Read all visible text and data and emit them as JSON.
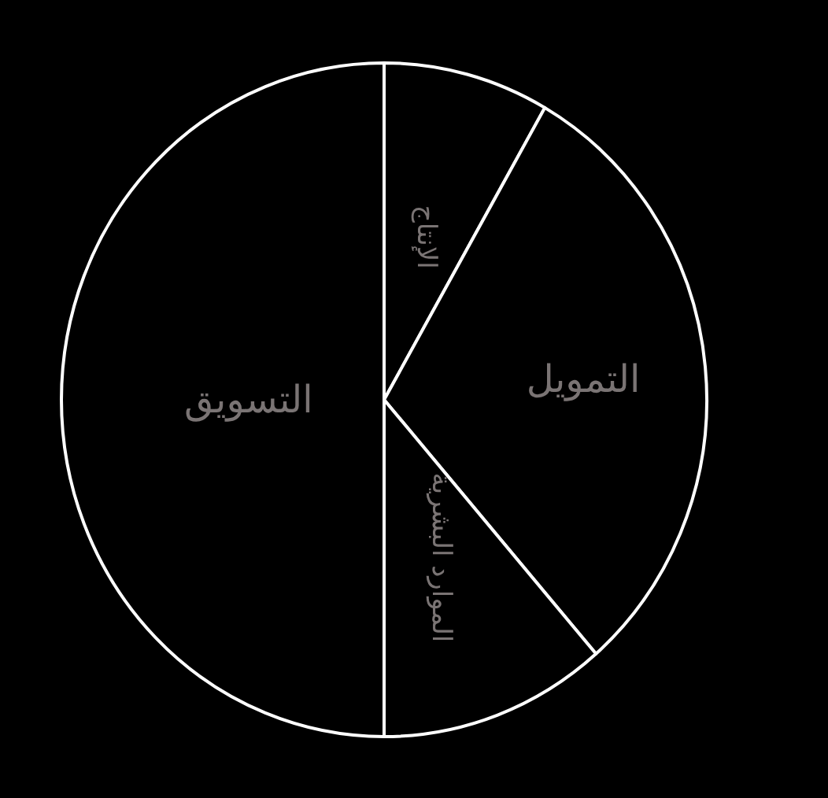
{
  "chart_data": {
    "type": "pie",
    "categories": [
      "الإنتاج",
      "التمويل",
      "الموارد البشرية",
      "التسويق"
    ],
    "values": [
      8.3,
      30.3,
      11.4,
      50
    ],
    "colors": [
      "#000000",
      "#000000",
      "#000000",
      "#000000"
    ]
  }
}
